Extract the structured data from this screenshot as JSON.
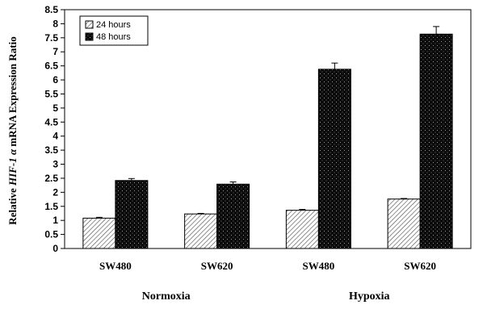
{
  "chart_data": {
    "type": "bar",
    "title": "",
    "xlabel": "",
    "ylabel_parts": [
      "Relative ",
      "HIF-1 α",
      " mRNA Expression Ratio"
    ],
    "ylim": [
      0,
      8.5
    ],
    "yticks": [
      "0",
      "0.5",
      "1",
      "1.5",
      "2",
      "2.5",
      "3",
      "3.5",
      "4",
      "4.5",
      "5",
      "5.5",
      "6",
      "6.5",
      "7",
      "7.5",
      "8",
      "8.5"
    ],
    "categories": [
      "SW480",
      "SW620",
      "SW480",
      "SW620"
    ],
    "groups": [
      {
        "label": "Normoxia",
        "categories": [
          0,
          1
        ]
      },
      {
        "label": "Hypoxia",
        "categories": [
          2,
          3
        ]
      }
    ],
    "series": [
      {
        "name": "24 hours",
        "values": [
          1.08,
          1.23,
          1.36,
          1.76
        ],
        "errors": [
          0.03,
          0.02,
          0.03,
          0.02
        ],
        "pattern": "diagonal-hatch"
      },
      {
        "name": "48 hours",
        "values": [
          2.42,
          2.29,
          6.38,
          7.63
        ],
        "errors": [
          0.07,
          0.08,
          0.22,
          0.27
        ],
        "pattern": "dark-dotted"
      }
    ],
    "grid": false,
    "legend_position": "top-left"
  }
}
